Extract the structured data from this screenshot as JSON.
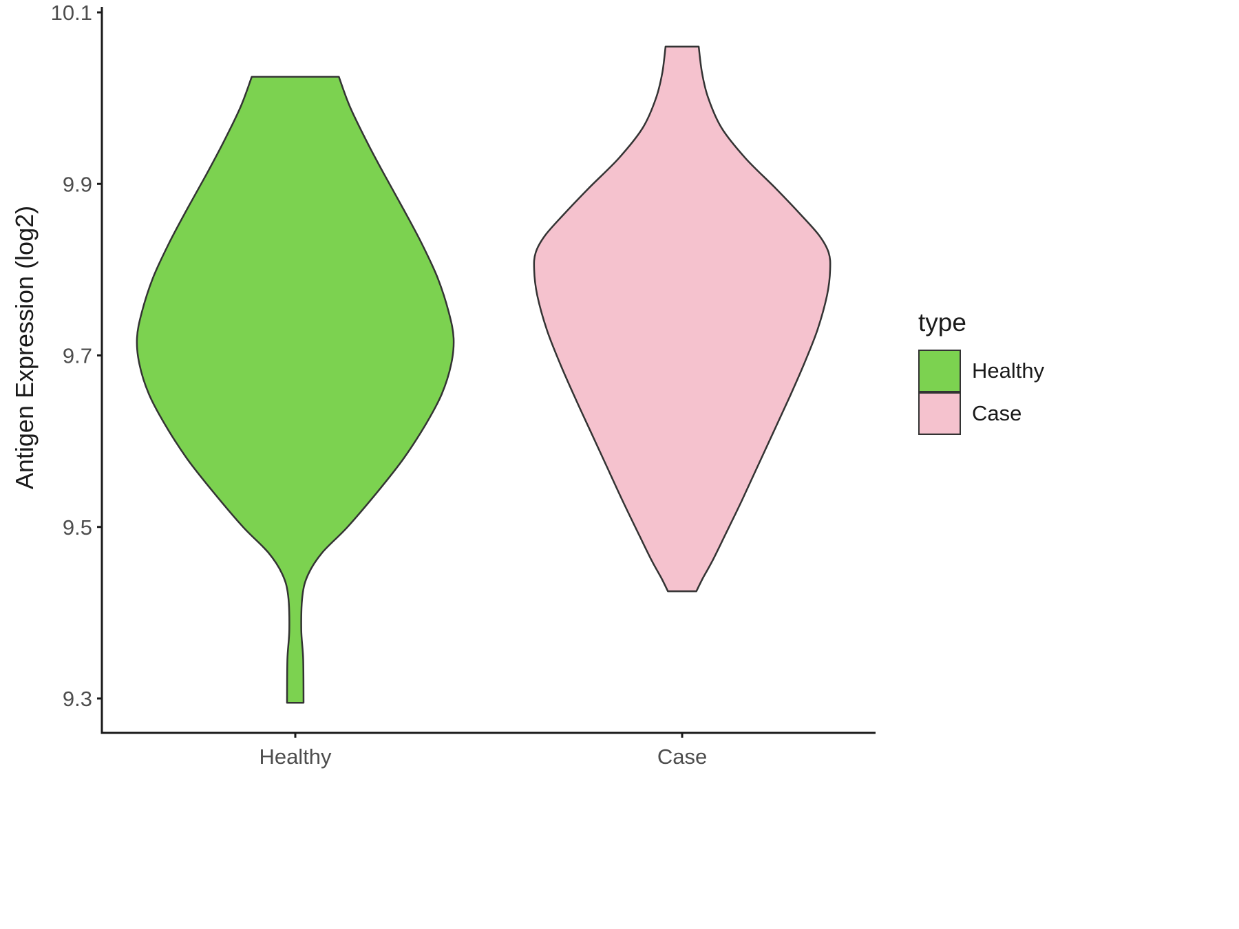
{
  "chart_data": {
    "type": "violin",
    "title": "",
    "xlabel": "",
    "ylabel": "Antigen Expression (log2)",
    "categories": [
      "Healthy",
      "Case"
    ],
    "y_axis": {
      "ticks": [
        9.3,
        9.5,
        9.7,
        9.9,
        10.1
      ],
      "tick_labels": [
        "9.3",
        "9.5",
        "9.7",
        "9.9",
        "10.1"
      ],
      "ylim": [
        9.25,
        10.12
      ]
    },
    "legend": {
      "title": "type",
      "position": "right",
      "entries": [
        {
          "label": "Healthy",
          "color": "#7CD250"
        },
        {
          "label": "Case",
          "color": "#F5C2CE"
        }
      ]
    },
    "colors": {
      "outline": "#333333",
      "axis": "#1a1a1a",
      "tick_text": "#4d4d4d"
    },
    "series": [
      {
        "name": "Healthy",
        "color": "#7CD250",
        "value_range": [
          9.295,
          10.025
        ],
        "profile": [
          [
            10.025,
            0.275
          ],
          [
            9.99,
            0.345
          ],
          [
            9.95,
            0.45
          ],
          [
            9.91,
            0.565
          ],
          [
            9.87,
            0.685
          ],
          [
            9.83,
            0.8
          ],
          [
            9.79,
            0.9
          ],
          [
            9.75,
            0.97
          ],
          [
            9.72,
            1.0
          ],
          [
            9.69,
            0.985
          ],
          [
            9.655,
            0.925
          ],
          [
            9.62,
            0.825
          ],
          [
            9.58,
            0.685
          ],
          [
            9.54,
            0.515
          ],
          [
            9.5,
            0.33
          ],
          [
            9.47,
            0.17
          ],
          [
            9.445,
            0.082
          ],
          [
            9.42,
            0.045
          ],
          [
            9.38,
            0.038
          ],
          [
            9.345,
            0.05
          ],
          [
            9.295,
            0.052
          ]
        ]
      },
      {
        "name": "Case",
        "color": "#F5C2CE",
        "value_range": [
          9.425,
          10.06
        ],
        "profile": [
          [
            10.06,
            0.105
          ],
          [
            10.03,
            0.125
          ],
          [
            10.0,
            0.165
          ],
          [
            9.965,
            0.25
          ],
          [
            9.93,
            0.4
          ],
          [
            9.895,
            0.59
          ],
          [
            9.865,
            0.745
          ],
          [
            9.84,
            0.865
          ],
          [
            9.82,
            0.925
          ],
          [
            9.8,
            0.935
          ],
          [
            9.77,
            0.915
          ],
          [
            9.73,
            0.855
          ],
          [
            9.69,
            0.77
          ],
          [
            9.65,
            0.675
          ],
          [
            9.61,
            0.575
          ],
          [
            9.57,
            0.475
          ],
          [
            9.53,
            0.375
          ],
          [
            9.49,
            0.27
          ],
          [
            9.46,
            0.19
          ],
          [
            9.44,
            0.13
          ],
          [
            9.425,
            0.09
          ]
        ]
      }
    ]
  }
}
